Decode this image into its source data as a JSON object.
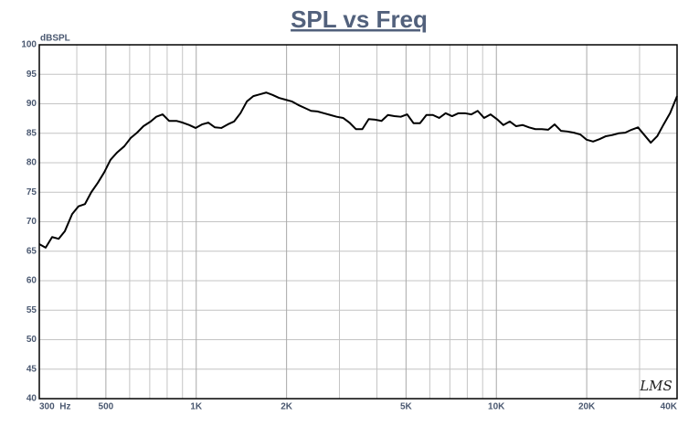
{
  "chart_data": {
    "type": "line",
    "title": "SPL vs Freq",
    "y_label": "dBSPL",
    "watermark": "LMS",
    "xscale": "log",
    "grid": true,
    "xlim": [
      300,
      40000
    ],
    "ylim": [
      40,
      100
    ],
    "yticks": [
      40,
      45,
      50,
      55,
      60,
      65,
      70,
      75,
      80,
      85,
      90,
      95,
      100
    ],
    "xticks": [
      {
        "value": 300,
        "label": "300  Hz"
      },
      {
        "value": 500,
        "label": "500"
      },
      {
        "value": 1000,
        "label": "1K"
      },
      {
        "value": 2000,
        "label": "2K"
      },
      {
        "value": 5000,
        "label": "5K"
      },
      {
        "value": 10000,
        "label": "10K"
      },
      {
        "value": 20000,
        "label": "20K"
      },
      {
        "value": 40000,
        "label": "40K"
      }
    ],
    "xminorticks": [
      400,
      600,
      700,
      800,
      900,
      3000,
      4000,
      6000,
      7000,
      8000,
      9000,
      30000
    ],
    "x": [
      300,
      315,
      331,
      348,
      365,
      386,
      405,
      426,
      447,
      470,
      494,
      518,
      544,
      576,
      605,
      635,
      667,
      705,
      736,
      773,
      812,
      859,
      902,
      947,
      995,
      1045,
      1098,
      1154,
      1212,
      1273,
      1337,
      1404,
      1475,
      1550,
      1628,
      1710,
      1796,
      1887,
      1982,
      2082,
      2187,
      2297,
      2413,
      2534,
      2662,
      2796,
      2937,
      3085,
      3241,
      3404,
      3576,
      3756,
      3945,
      4144,
      4353,
      4572,
      4803,
      5045,
      5299,
      5566,
      5847,
      6142,
      6451,
      6776,
      7118,
      7477,
      7854,
      8250,
      8666,
      9102,
      9561,
      10043,
      10549,
      11081,
      11640,
      12226,
      12843,
      13490,
      14170,
      14885,
      15635,
      16423,
      17251,
      18121,
      19034,
      19994,
      21002,
      22061,
      23173,
      24340,
      25567,
      26857,
      28211,
      29633,
      31127,
      32696,
      34345,
      36076,
      37895,
      40000
    ],
    "series": [
      {
        "name": "SPL",
        "color": "#000000",
        "values": [
          66.2,
          65.6,
          67.4,
          67.1,
          68.4,
          71.3,
          72.6,
          73.0,
          75.0,
          76.6,
          78.4,
          80.5,
          81.7,
          82.8,
          84.2,
          85.1,
          86.2,
          87.0,
          87.8,
          88.2,
          87.1,
          87.1,
          86.8,
          86.4,
          85.9,
          86.5,
          86.8,
          86.0,
          85.9,
          86.5,
          87.0,
          88.4,
          90.4,
          91.3,
          91.6,
          91.9,
          91.5,
          91.0,
          90.7,
          90.4,
          89.8,
          89.3,
          88.8,
          88.7,
          88.4,
          88.1,
          87.8,
          87.6,
          86.8,
          85.7,
          85.7,
          87.4,
          87.3,
          87.1,
          88.1,
          87.9,
          87.8,
          88.2,
          86.7,
          86.7,
          88.1,
          88.1,
          87.6,
          88.4,
          87.9,
          88.4,
          88.4,
          88.2,
          88.8,
          87.6,
          88.2,
          87.4,
          86.4,
          87.0,
          86.2,
          86.4,
          86.0,
          85.7,
          85.7,
          85.6,
          86.5,
          85.4,
          85.3,
          85.1,
          84.8,
          83.9,
          83.6,
          84.0,
          84.5,
          84.7,
          85.0,
          85.1,
          85.6,
          86.0,
          84.7,
          83.4,
          84.5,
          86.5,
          88.4,
          91.3
        ]
      }
    ]
  }
}
